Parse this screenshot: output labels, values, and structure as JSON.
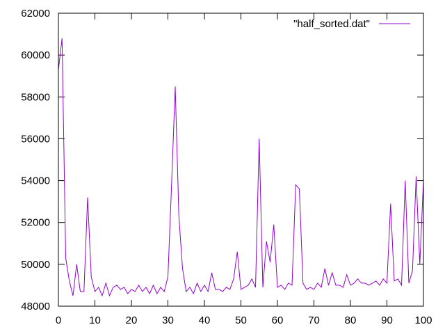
{
  "chart_data": {
    "type": "line",
    "title": "",
    "xlabel": "",
    "ylabel": "",
    "xlim": [
      0,
      100
    ],
    "ylim": [
      48000,
      62000
    ],
    "x_ticks": [
      "0",
      "10",
      "20",
      "30",
      "40",
      "50",
      "60",
      "70",
      "80",
      "90",
      "100"
    ],
    "y_ticks": [
      "48000",
      "50000",
      "52000",
      "54000",
      "56000",
      "58000",
      "60000",
      "62000"
    ],
    "grid": false,
    "legend_position": "top-right",
    "series": [
      {
        "name": "\"half_sorted.dat\"",
        "color": "#9400d3",
        "x": [
          0,
          1,
          2,
          3,
          4,
          5,
          6,
          7,
          8,
          9,
          10,
          11,
          12,
          13,
          14,
          15,
          16,
          17,
          18,
          19,
          20,
          21,
          22,
          23,
          24,
          25,
          26,
          27,
          28,
          29,
          30,
          31,
          32,
          33,
          34,
          35,
          36,
          37,
          38,
          39,
          40,
          41,
          42,
          43,
          44,
          45,
          46,
          47,
          48,
          49,
          50,
          51,
          52,
          53,
          54,
          55,
          56,
          57,
          58,
          59,
          60,
          61,
          62,
          63,
          64,
          65,
          66,
          67,
          68,
          69,
          70,
          71,
          72,
          73,
          74,
          75,
          76,
          77,
          78,
          79,
          80,
          81,
          82,
          83,
          84,
          85,
          86,
          87,
          88,
          89,
          90,
          91,
          92,
          93,
          94,
          95,
          96,
          97,
          98,
          99,
          100
        ],
        "y": [
          59300,
          60800,
          50300,
          49200,
          48500,
          50000,
          48700,
          48700,
          53200,
          49400,
          48700,
          48900,
          48500,
          49100,
          48500,
          48900,
          49000,
          48800,
          48900,
          48600,
          48800,
          48700,
          49000,
          48700,
          48900,
          48600,
          49000,
          48600,
          48900,
          48700,
          49400,
          53800,
          58500,
          52300,
          49800,
          48700,
          48900,
          48600,
          49100,
          48700,
          49000,
          48700,
          49600,
          48800,
          48800,
          48700,
          48900,
          48800,
          49300,
          50600,
          48800,
          48900,
          49000,
          49300,
          48900,
          56000,
          48900,
          51100,
          50100,
          51900,
          48900,
          49000,
          48800,
          49100,
          49000,
          53800,
          53600,
          49100,
          48800,
          48900,
          48800,
          49100,
          48900,
          49800,
          49000,
          49600,
          49000,
          49000,
          48900,
          49500,
          49000,
          49100,
          49300,
          49100,
          49100,
          49000,
          49100,
          49200,
          49000,
          49300,
          49100,
          52900,
          49200,
          49300,
          49000,
          54000,
          49100,
          49700,
          54200,
          50000,
          54000
        ]
      }
    ]
  }
}
